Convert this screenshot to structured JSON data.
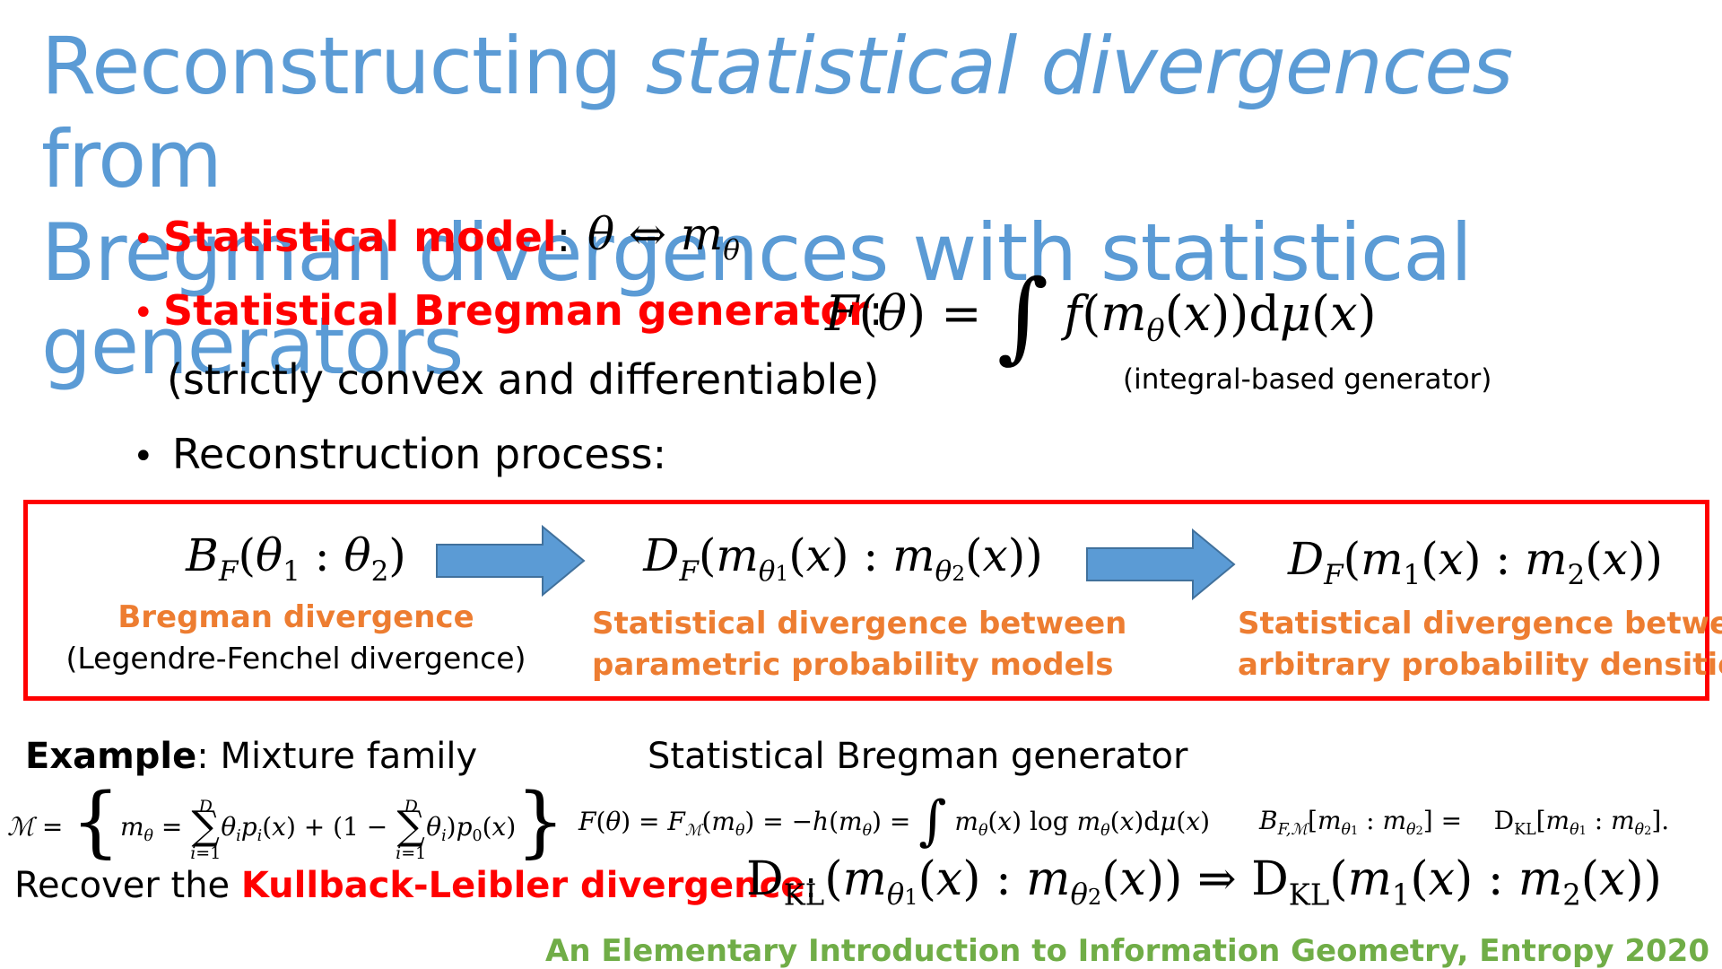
{
  "title": {
    "part1": "Reconstructing ",
    "italic": "statistical divergences",
    "part2": " from",
    "line2": "Bregman divergences with statistical generators"
  },
  "bullets": {
    "model_label": "Statistical model",
    "model_colon": ":",
    "model_formula": "θ ⇔ m",
    "model_formula_sub": "θ",
    "generator_label": "Statistical Bregman generator",
    "generator_colon": ":",
    "generator_formula": "F(θ) = ∫ f(m_θ(x))dμ(x)",
    "generator_note": "(strictly convex and differentiable)",
    "integral_note": "(integral-based generator)",
    "process_label": "Reconstruction process:"
  },
  "process": {
    "step1_formula": "B_F(θ₁ : θ₂)",
    "step1_title": "Bregman divergence",
    "step1_subtitle": "(Legendre-Fenchel divergence)",
    "step2_formula": "D_F(m_θ₁(x) : m_θ₂(x))",
    "step2_title_line1": "Statistical divergence between",
    "step2_title_line2": "parametric probability models",
    "step3_formula": "D_F(m₁(x) : m₂(x))",
    "step3_title_line1": "Statistical divergence between",
    "step3_title_line2": "arbitrary probability densities"
  },
  "example": {
    "label": "Example",
    "text": ": Mixture family",
    "generator_heading": "Statistical Bregman generator",
    "mixture_formula": "M = { m_θ = Σ_{i=1}^{D} θ_i p_i(x) + (1 − Σ_{i=1}^{D} θ_i) p_0(x) }",
    "entropy_formula": "F(θ) = F_M(m_θ) = −h(m_θ) = ∫ m_θ(x) log m_θ(x) dμ(x)",
    "kl_formula": "B_{F,M}[m_θ₁ : m_θ₂] = D_KL[m_θ₁ : m_θ₂]."
  },
  "recover": {
    "prefix": "Recover the ",
    "highlight": "Kullback-Leibler divergence",
    "suffix": ":",
    "formula": "D_KL(m_θ₁(x) : m_θ₂(x)) ⇒ D_KL(m₁(x) : m₂(x))"
  },
  "footer": "An Elementary Introduction to Information Geometry, Entropy 2020",
  "colors": {
    "title": "#5b9bd5",
    "red": "#ff0000",
    "orange": "#ed7d31",
    "green": "#70ad47",
    "arrow": "#5b9bd5"
  }
}
